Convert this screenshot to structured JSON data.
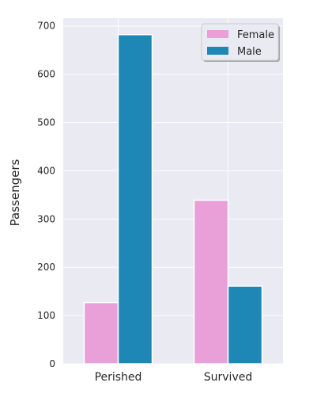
{
  "chart_data": {
    "type": "bar",
    "title": "",
    "xlabel": "",
    "ylabel": "Passengers",
    "categories": [
      "Perished",
      "Survived"
    ],
    "series": [
      {
        "name": "Female",
        "values": [
          127,
          339
        ],
        "color": "#e99fd8"
      },
      {
        "name": "Male",
        "values": [
          682,
          161
        ],
        "color": "#1f87b6"
      }
    ],
    "ylim": [
      0,
      716
    ],
    "yticks": [
      0,
      100,
      200,
      300,
      400,
      500,
      600,
      700
    ],
    "grid": true,
    "legend_position": "top-right",
    "background_color": "#eaeaf2"
  }
}
